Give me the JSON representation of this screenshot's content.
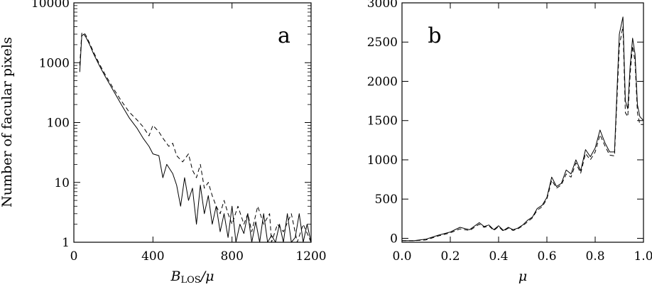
{
  "chart_data": [
    {
      "panel": "a",
      "type": "line",
      "label": "a",
      "xlabel": "B",
      "xlabel_sub": "LOS",
      "xlabel_suffix": "/μ",
      "ylabel": "Number of facular pixels",
      "xlim": [
        0,
        1200
      ],
      "ylim": [
        1,
        10000
      ],
      "yscale": "log",
      "xticks": [
        0,
        400,
        800,
        1200
      ],
      "yticks": [
        1,
        10,
        100,
        1000,
        10000
      ],
      "xtick_labels": [
        "0",
        "400",
        "800",
        "1200"
      ],
      "ytick_labels": [
        "1",
        "10",
        "100",
        "1000",
        "10000"
      ],
      "grid": false,
      "series": [
        {
          "style": "solid",
          "x": [
            30,
            40,
            50,
            60,
            80,
            100,
            130,
            160,
            200,
            240,
            280,
            320,
            350,
            380,
            400,
            430,
            450,
            470,
            500,
            520,
            540,
            560,
            580,
            600,
            620,
            640,
            660,
            680,
            700,
            720,
            740,
            760,
            780,
            800,
            820,
            840,
            860,
            880,
            900,
            920,
            940,
            960,
            980,
            1000,
            1020,
            1040,
            1060,
            1080,
            1100,
            1120,
            1140,
            1160,
            1180,
            1200
          ],
          "y": [
            700,
            2800,
            3000,
            2700,
            2000,
            1400,
            880,
            580,
            340,
            200,
            120,
            80,
            55,
            40,
            30,
            28,
            12,
            20,
            14,
            9,
            4,
            12,
            5,
            8,
            2,
            9,
            3,
            6,
            2,
            4,
            1.5,
            3,
            1.2,
            4,
            1,
            2,
            1.4,
            3,
            1,
            2.2,
            1,
            3,
            1,
            1.3,
            1,
            2,
            1,
            3,
            1,
            1.2,
            3,
            1,
            2,
            1
          ]
        },
        {
          "style": "dashed",
          "x": [
            30,
            40,
            50,
            60,
            80,
            100,
            130,
            160,
            200,
            240,
            280,
            320,
            350,
            380,
            400,
            430,
            450,
            480,
            500,
            520,
            550,
            580,
            600,
            620,
            640,
            660,
            680,
            700,
            720,
            740,
            760,
            780,
            800,
            830,
            860,
            880,
            900,
            930,
            960,
            990,
            1000,
            1030,
            1060,
            1100,
            1130,
            1160,
            1200
          ],
          "y": [
            900,
            3100,
            3200,
            2900,
            2100,
            1500,
            940,
            620,
            370,
            230,
            150,
            110,
            85,
            60,
            90,
            70,
            55,
            40,
            45,
            28,
            22,
            30,
            16,
            12,
            20,
            8,
            10,
            6,
            4,
            3,
            5,
            3,
            2,
            4,
            2,
            3,
            1.5,
            4,
            2,
            3,
            1,
            2,
            1.5,
            3,
            1,
            2,
            1
          ]
        }
      ]
    },
    {
      "panel": "b",
      "type": "line",
      "label": "b",
      "xlabel": "μ",
      "ylabel": "",
      "xlim": [
        0,
        1
      ],
      "ylim": [
        -50,
        3000
      ],
      "yscale": "linear",
      "xticks": [
        0,
        0.2,
        0.4,
        0.6,
        0.8,
        1.0
      ],
      "yticks": [
        0,
        500,
        1000,
        1500,
        2000,
        2500,
        3000
      ],
      "xtick_labels": [
        "0.0",
        "0.2",
        "0.4",
        "0.6",
        "0.8",
        "1.0"
      ],
      "ytick_labels": [
        "0",
        "500",
        "1000",
        "1500",
        "2000",
        "2500",
        "3000"
      ],
      "grid": false,
      "series": [
        {
          "style": "solid",
          "x": [
            0.0,
            0.05,
            0.1,
            0.15,
            0.2,
            0.24,
            0.28,
            0.32,
            0.34,
            0.36,
            0.38,
            0.4,
            0.42,
            0.44,
            0.46,
            0.48,
            0.5,
            0.52,
            0.54,
            0.56,
            0.58,
            0.6,
            0.62,
            0.64,
            0.66,
            0.68,
            0.7,
            0.72,
            0.74,
            0.76,
            0.78,
            0.8,
            0.82,
            0.84,
            0.86,
            0.88,
            0.9,
            0.915,
            0.925,
            0.935,
            0.945,
            0.955,
            0.965,
            0.975,
            0.985,
            1.0
          ],
          "y": [
            -30,
            -30,
            -10,
            40,
            80,
            140,
            110,
            200,
            150,
            170,
            110,
            160,
            100,
            140,
            110,
            130,
            170,
            230,
            270,
            380,
            420,
            520,
            780,
            660,
            700,
            870,
            820,
            1000,
            860,
            1130,
            1040,
            1150,
            1380,
            1220,
            1100,
            1100,
            2600,
            2820,
            1750,
            1650,
            2200,
            2550,
            2350,
            1700,
            1550,
            1500
          ]
        },
        {
          "style": "dashed",
          "x": [
            0.0,
            0.05,
            0.1,
            0.15,
            0.2,
            0.24,
            0.28,
            0.32,
            0.34,
            0.36,
            0.38,
            0.4,
            0.42,
            0.44,
            0.46,
            0.48,
            0.5,
            0.52,
            0.54,
            0.56,
            0.58,
            0.6,
            0.62,
            0.64,
            0.66,
            0.68,
            0.7,
            0.72,
            0.74,
            0.76,
            0.78,
            0.8,
            0.82,
            0.84,
            0.86,
            0.88,
            0.9,
            0.915,
            0.925,
            0.935,
            0.945,
            0.955,
            0.965,
            0.975,
            0.985,
            1.0
          ],
          "y": [
            -30,
            -30,
            -20,
            30,
            70,
            120,
            100,
            180,
            140,
            160,
            100,
            150,
            90,
            130,
            100,
            120,
            160,
            210,
            260,
            360,
            400,
            500,
            740,
            640,
            680,
            820,
            780,
            960,
            830,
            1080,
            1000,
            1100,
            1320,
            1180,
            1060,
            1050,
            2450,
            2700,
            1600,
            1550,
            2100,
            2450,
            2250,
            1600,
            1450,
            1450
          ]
        }
      ]
    }
  ]
}
